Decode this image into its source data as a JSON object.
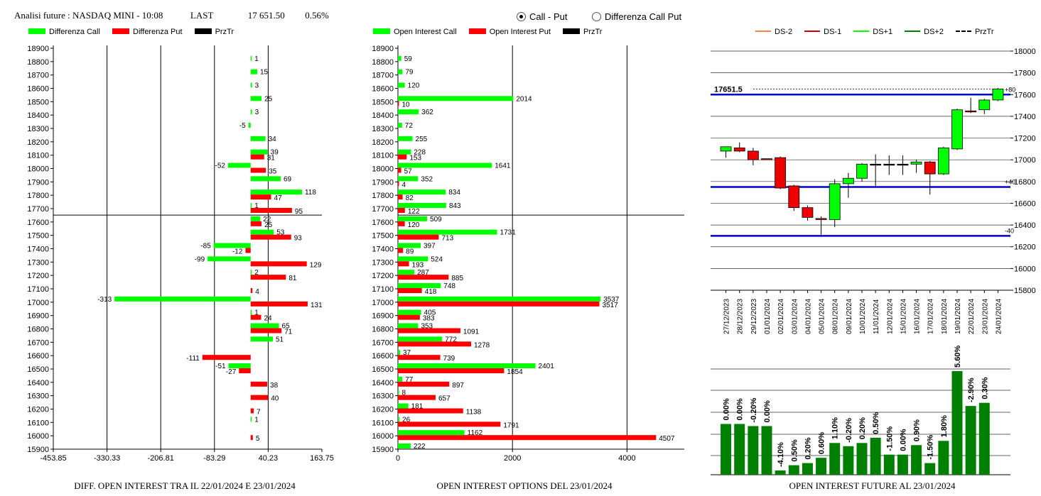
{
  "header": {
    "title": "Analisi future : NASDAQ MINI - 10:08",
    "last_label": "LAST",
    "last_value": "17 651.50",
    "change": "0.56%"
  },
  "mode": {
    "options": [
      "Call - Put",
      "Differenza Call Put"
    ],
    "selected": "Call - Put"
  },
  "colors": {
    "green": "#00ff00",
    "red": "#ff0000",
    "black": "#000000",
    "dark_green": "#008000",
    "blue": "#0000cc",
    "orange": "#ff8040"
  },
  "legend1": [
    "Differenza Call",
    "Differenza Put",
    "PrzTr"
  ],
  "legend2": [
    "Open Interest Call",
    "Open Interest Put",
    "PrzTr"
  ],
  "legend3": [
    "DS-2",
    "DS-1",
    "DS+1",
    "DS+2",
    "PrzTr"
  ],
  "captions": {
    "c1": "DIFF. OPEN INTEREST TRA IL 22/01/2024 E 23/01/2024",
    "c2": "OPEN INTEREST OPTIONS DEL 23/01/2024",
    "c3": "OPEN INTEREST FUTURE AL 23/01/2024"
  },
  "chart_data": [
    {
      "type": "bar",
      "orientation": "horizontal",
      "categories": [
        "18900",
        "18800",
        "18700",
        "18600",
        "18500",
        "18400",
        "18300",
        "18200",
        "18100",
        "18000",
        "17900",
        "17800",
        "17700",
        "17600",
        "17500",
        "17400",
        "17300",
        "17200",
        "17100",
        "17000",
        "16900",
        "16800",
        "16700",
        "16600",
        "16500",
        "16400",
        "16300",
        "16200",
        "16100",
        "16000",
        "15900"
      ],
      "series": [
        {
          "name": "Differenza Call",
          "values": [
            null,
            1,
            15,
            3,
            25,
            3,
            -5,
            34,
            39,
            -52,
            69,
            118,
            1,
            22,
            53,
            -85,
            -99,
            2,
            null,
            -313,
            1,
            65,
            51,
            null,
            -51,
            null,
            null,
            null,
            1,
            null,
            null
          ]
        },
        {
          "name": "Differenza Put",
          "values": [
            null,
            null,
            null,
            null,
            null,
            null,
            null,
            null,
            31,
            35,
            null,
            47,
            95,
            25,
            93,
            -12,
            129,
            81,
            4,
            131,
            24,
            71,
            null,
            -111,
            -27,
            38,
            40,
            7,
            null,
            5,
            null
          ]
        }
      ],
      "xticks": [
        "-453.85",
        "-330.33",
        "-206.81",
        "-83.29",
        "40.23",
        "163.75"
      ],
      "xlim": [
        -453.85,
        163.75
      ],
      "przTr": 17651.5
    },
    {
      "type": "bar",
      "orientation": "horizontal",
      "categories": [
        "18900",
        "18800",
        "18700",
        "18600",
        "18500",
        "18400",
        "18300",
        "18200",
        "18100",
        "18000",
        "17900",
        "17800",
        "17700",
        "17600",
        "17500",
        "17400",
        "17300",
        "17200",
        "17100",
        "17000",
        "16900",
        "16800",
        "16700",
        "16600",
        "16500",
        "16400",
        "16300",
        "16200",
        "16100",
        "16000",
        "15900"
      ],
      "series": [
        {
          "name": "Open Interest Call",
          "values": [
            null,
            59,
            79,
            120,
            2014,
            362,
            72,
            255,
            228,
            1641,
            352,
            834,
            843,
            509,
            1731,
            397,
            524,
            287,
            748,
            3537,
            405,
            353,
            772,
            37,
            2401,
            77,
            8,
            181,
            26,
            1162,
            222
          ]
        },
        {
          "name": "Open Interest Put",
          "values": [
            null,
            null,
            null,
            null,
            10,
            null,
            null,
            null,
            153,
            57,
            4,
            82,
            122,
            120,
            713,
            89,
            193,
            885,
            418,
            3517,
            383,
            1091,
            1278,
            739,
            1854,
            897,
            657,
            1138,
            1791,
            4507,
            null
          ]
        }
      ],
      "xticks": [
        "0",
        "2000",
        "4000"
      ],
      "xlim": [
        0,
        5000
      ],
      "przTr": 17651.5
    },
    {
      "type": "candlestick",
      "dates": [
        "27/12/2023",
        "28/12/2023",
        "29/12/2023",
        "01/01/2024",
        "02/01/2024",
        "03/01/2024",
        "04/01/2024",
        "05/01/2024",
        "08/01/2024",
        "09/01/2024",
        "10/01/2024",
        "11/01/2024",
        "12/01/2024",
        "15/01/2024",
        "16/01/2024",
        "17/01/2024",
        "18/01/2024",
        "19/01/2024",
        "22/01/2024",
        "23/01/2024",
        "24/01/2024"
      ],
      "candles": [
        {
          "o": 17080,
          "h": 17120,
          "l": 17020,
          "c": 17120
        },
        {
          "o": 17110,
          "h": 17160,
          "l": 17070,
          "c": 17080
        },
        {
          "o": 17080,
          "h": 17110,
          "l": 16950,
          "c": 17000
        },
        {
          "o": 17010,
          "h": 17010,
          "l": 17000,
          "c": 17005
        },
        {
          "o": 17020,
          "h": 17030,
          "l": 16730,
          "c": 16740
        },
        {
          "o": 16760,
          "h": 16770,
          "l": 16530,
          "c": 16560
        },
        {
          "o": 16560,
          "h": 16580,
          "l": 16440,
          "c": 16470
        },
        {
          "o": 16460,
          "h": 16480,
          "l": 16310,
          "c": 16450
        },
        {
          "o": 16450,
          "h": 16820,
          "l": 16380,
          "c": 16780
        },
        {
          "o": 16780,
          "h": 16880,
          "l": 16650,
          "c": 16830
        },
        {
          "o": 16830,
          "h": 16970,
          "l": 16800,
          "c": 16960
        },
        {
          "o": 16960,
          "h": 17050,
          "l": 16760,
          "c": 16960
        },
        {
          "o": 16960,
          "h": 17040,
          "l": 16860,
          "c": 16960
        },
        {
          "o": 16960,
          "h": 17040,
          "l": 16860,
          "c": 16960
        },
        {
          "o": 16960,
          "h": 17000,
          "l": 16880,
          "c": 16980
        },
        {
          "o": 16980,
          "h": 16990,
          "l": 16680,
          "c": 16870
        },
        {
          "o": 16870,
          "h": 17120,
          "l": 16860,
          "c": 17110
        },
        {
          "o": 17100,
          "h": 17470,
          "l": 17090,
          "c": 17460
        },
        {
          "o": 17450,
          "h": 17570,
          "l": 17430,
          "c": 17440
        },
        {
          "o": 17460,
          "h": 17560,
          "l": 17420,
          "c": 17550
        },
        {
          "o": 17550,
          "h": 17660,
          "l": 17540,
          "c": 17652
        }
      ],
      "yticks": [
        "18000",
        "17800",
        "17600",
        "17400",
        "17200",
        "17000",
        "16800",
        "16600",
        "16400",
        "16200",
        "16000",
        "15800"
      ],
      "ylim": [
        15800,
        18000
      ],
      "lines": {
        "upper": 17600,
        "mid": 16750,
        "lower": 16300
      },
      "labels": {
        "przTr": "17651.5",
        "upper": "+80",
        "mid": "+40",
        "lower": "-40"
      }
    },
    {
      "type": "bar",
      "categories": [
        "27/12/2023",
        "28/12/2023",
        "29/12/2023",
        "01/01/2024",
        "02/01/2024",
        "03/01/2024",
        "04/01/2024",
        "05/01/2024",
        "08/01/2024",
        "09/01/2024",
        "10/01/2024",
        "11/01/2024",
        "12/01/2024",
        "15/01/2024",
        "16/01/2024",
        "17/01/2024",
        "18/01/2024",
        "19/01/2024",
        "22/01/2024",
        "23/01/2024",
        "24/01/2024"
      ],
      "value_labels": [
        "0.00%",
        "0.00%",
        "-0.20%",
        "0.00%",
        "-4.10%",
        "0.50%",
        "0.20%",
        "0.60%",
        "1.10%",
        "-0.20%",
        "0.20%",
        "0.50%",
        "-1.50%",
        "0.00%",
        "0.90%",
        "-1.50%",
        "1.80%",
        "5.60%",
        "-2.90%",
        "0.30%",
        null
      ],
      "heights": [
        0.48,
        0.48,
        0.46,
        0.46,
        0.04,
        0.09,
        0.11,
        0.16,
        0.3,
        0.27,
        0.3,
        0.35,
        0.19,
        0.19,
        0.28,
        0.11,
        0.32,
        0.98,
        0.65,
        0.68,
        null
      ]
    }
  ]
}
